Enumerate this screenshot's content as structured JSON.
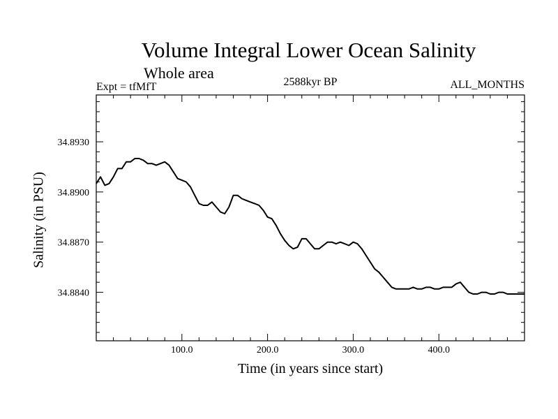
{
  "chart_data": {
    "type": "line",
    "title": "Volume Integral Lower Ocean Salinity",
    "subtitle": "Whole area",
    "experiment_label": "Expt = tfMfT",
    "period_label": "2588kyr BP",
    "months_label": "ALL_MONTHS",
    "xlabel": "Time (in years since start)",
    "ylabel": "Salinity (in PSU)",
    "xlim": [
      0,
      500
    ],
    "ylim": [
      34.8811,
      34.8958
    ],
    "x_ticks": [
      100,
      200,
      300,
      400
    ],
    "x_tick_labels": [
      "100.0",
      "200.0",
      "300.0",
      "400.0"
    ],
    "y_ticks": [
      34.884,
      34.887,
      34.89,
      34.893
    ],
    "y_tick_labels": [
      "34.8840",
      "34.8870",
      "34.8900",
      "34.8930"
    ],
    "grid": false,
    "series": [
      {
        "name": "Salinity",
        "x": [
          0,
          5,
          10,
          15,
          20,
          25,
          30,
          35,
          40,
          45,
          50,
          55,
          60,
          65,
          70,
          75,
          80,
          85,
          90,
          95,
          100,
          105,
          110,
          115,
          120,
          125,
          130,
          135,
          140,
          145,
          150,
          155,
          160,
          165,
          170,
          175,
          180,
          185,
          190,
          195,
          200,
          205,
          210,
          215,
          220,
          225,
          230,
          235,
          240,
          245,
          250,
          255,
          260,
          265,
          270,
          275,
          280,
          285,
          290,
          295,
          300,
          305,
          310,
          315,
          320,
          325,
          330,
          335,
          340,
          345,
          350,
          355,
          360,
          365,
          370,
          375,
          380,
          385,
          390,
          395,
          400,
          405,
          410,
          415,
          420,
          425,
          430,
          435,
          440,
          445,
          450,
          455,
          460,
          465,
          470,
          475,
          480,
          485,
          490,
          495,
          500
        ],
        "y": [
          34.8905,
          34.8909,
          34.8904,
          34.8905,
          34.8909,
          34.8914,
          34.8914,
          34.8918,
          34.8918,
          34.892,
          34.892,
          34.8919,
          34.8917,
          34.8917,
          34.8916,
          34.8917,
          34.8918,
          34.8916,
          34.8912,
          34.8908,
          34.8907,
          34.8906,
          34.8903,
          34.8898,
          34.8893,
          34.8892,
          34.8892,
          34.8894,
          34.8891,
          34.8888,
          34.8887,
          34.8891,
          34.8898,
          34.8898,
          34.8896,
          34.8895,
          34.8894,
          34.8893,
          34.8892,
          34.8889,
          34.8885,
          34.8884,
          34.888,
          34.8875,
          34.8871,
          34.8868,
          34.8866,
          34.8867,
          34.8872,
          34.8872,
          34.8869,
          34.8866,
          34.8866,
          34.8868,
          34.887,
          34.887,
          34.8869,
          34.887,
          34.8869,
          34.8868,
          34.887,
          34.8869,
          34.8866,
          34.8862,
          34.8858,
          34.8854,
          34.8852,
          34.8849,
          34.8846,
          34.8843,
          34.8842,
          34.8842,
          34.8842,
          34.8842,
          34.8843,
          34.8842,
          34.8842,
          34.8843,
          34.8843,
          34.8842,
          34.8842,
          34.8843,
          34.8843,
          34.8843,
          34.8845,
          34.8846,
          34.8843,
          34.884,
          34.8839,
          34.8839,
          34.884,
          34.884,
          34.8839,
          34.8839,
          34.884,
          34.884,
          34.8839,
          34.8839,
          34.8839,
          34.8839,
          34.8839
        ]
      }
    ]
  }
}
